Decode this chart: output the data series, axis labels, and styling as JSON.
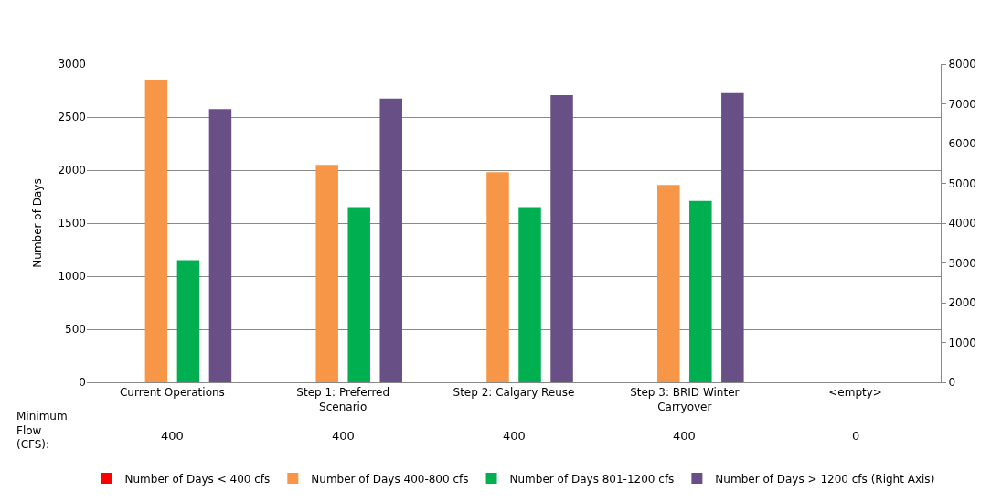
{
  "chart_data": {
    "type": "bar",
    "ylabel": "Number of Days",
    "categories": [
      "Current Operations",
      "Step 1: Preferred Scenario",
      "Step 2: Calgary Reuse",
      "Step 3: BRID Winter Carryover",
      "<empty>"
    ],
    "series": [
      {
        "name": "Number of Days < 400 cfs",
        "color": "#ff0000",
        "values": [
          0,
          0,
          0,
          0,
          0
        ]
      },
      {
        "name": "Number of Days 400-800 cfs",
        "color": "#f79646",
        "values": [
          2850,
          2050,
          1980,
          1860,
          0
        ]
      },
      {
        "name": "Number of Days 801-1200 cfs",
        "color": "#00b050",
        "values": [
          1150,
          1650,
          1650,
          1710,
          0
        ]
      },
      {
        "name": "Number of Days > 1200 cfs (Right Axis)",
        "color": "#684f86",
        "axis": "y2",
        "values": [
          6870,
          7130,
          7220,
          7270,
          0
        ]
      }
    ],
    "ylim": [
      0,
      3000
    ],
    "yticks": [
      0,
      500,
      1000,
      1500,
      2000,
      2500,
      3000
    ],
    "y2lim": [
      0,
      8000
    ],
    "y2ticks": [
      0,
      1000,
      2000,
      3000,
      4000,
      5000,
      6000,
      7000,
      8000
    ],
    "grid": "y",
    "legend": "bottom",
    "annotations": [
      "Minimum Flow (CFS):",
      "400",
      "400",
      "400",
      "400",
      "0"
    ]
  }
}
